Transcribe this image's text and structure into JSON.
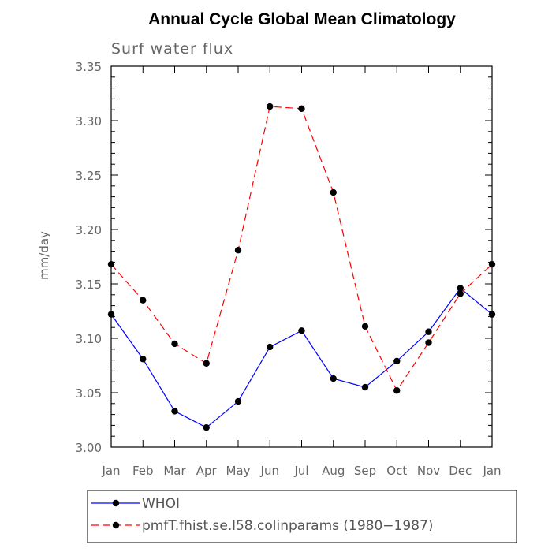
{
  "chart_data": {
    "type": "line",
    "title": "Annual Cycle Global Mean Climatology",
    "subtitle": "Surf water flux",
    "ylabel": "mm/day",
    "xlabel": "",
    "categories": [
      "Jan",
      "Feb",
      "Mar",
      "Apr",
      "May",
      "Jun",
      "Jul",
      "Aug",
      "Sep",
      "Oct",
      "Nov",
      "Dec",
      "Jan"
    ],
    "ylim": [
      3.0,
      3.35
    ],
    "yticks": [
      "3.00",
      "3.05",
      "3.10",
      "3.15",
      "3.20",
      "3.25",
      "3.30",
      "3.35"
    ],
    "legend_position": "bottom",
    "series": [
      {
        "name": "WHOI",
        "color": "#0000ff",
        "line_style": "solid",
        "values": [
          3.122,
          3.081,
          3.033,
          3.018,
          3.042,
          3.092,
          3.107,
          3.063,
          3.055,
          3.079,
          3.106,
          3.146,
          3.122
        ]
      },
      {
        "name": "pmfT.fhist.se.l58.colinparams (1980−1987)",
        "color": "#ff0000",
        "line_style": "dashed",
        "values": [
          3.168,
          3.135,
          3.095,
          3.077,
          3.181,
          3.313,
          3.311,
          3.234,
          3.111,
          3.052,
          3.096,
          3.141,
          3.168
        ]
      }
    ]
  }
}
